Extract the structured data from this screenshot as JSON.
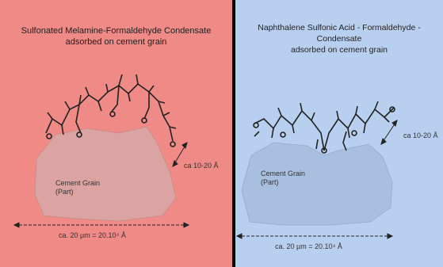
{
  "left_panel": {
    "title_line1": "Sulfonated Melamine-Formaldehyde Condensate",
    "title_line2": "adsorbed on cement grain",
    "grain_label_line1": "Cement Grain",
    "grain_label_line2": "(Part)",
    "thickness_label": "ca 10-20 Å",
    "width_label": "ca. 20 µm = 20.10⁴ Å",
    "background_color": "#f08a86"
  },
  "right_panel": {
    "title_line1": "Naphthalene Sulfonic Acid - Formaldehyde -Condensate",
    "title_line2": "adsorbed on cement grain",
    "grain_label_line1": "Cement Grain",
    "grain_label_line2": "(Part)",
    "thickness_label": "ca 10-20 Å",
    "width_label": "ca. 20 µm = 20.10⁴ Å",
    "background_color": "#b8cff0"
  }
}
